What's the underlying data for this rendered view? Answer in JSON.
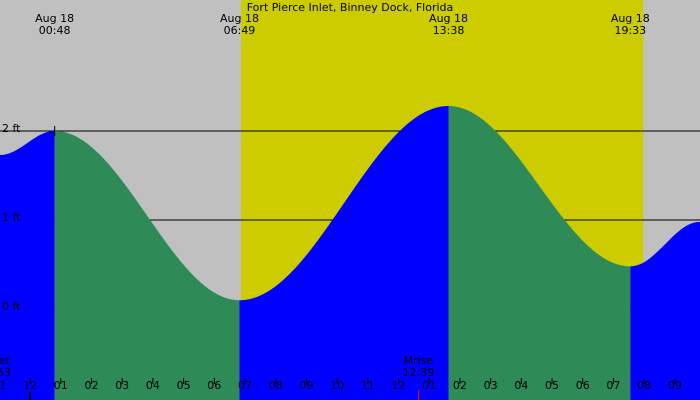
{
  "chart_data": {
    "type": "tide",
    "title": "Fort Pierce Inlet, Binney Dock, Florida",
    "xlim": [
      -0.98,
      21.82
    ],
    "ylim": [
      -1.02,
      3.47
    ],
    "xticks": [
      {
        "value": -1,
        "label": "11"
      },
      {
        "value": 0,
        "label": "12"
      },
      {
        "value": 1,
        "label": "01"
      },
      {
        "value": 2,
        "label": "02"
      },
      {
        "value": 3,
        "label": "03"
      },
      {
        "value": 4,
        "label": "04"
      },
      {
        "value": 5,
        "label": "05"
      },
      {
        "value": 6,
        "label": "06"
      },
      {
        "value": 7,
        "label": "07"
      },
      {
        "value": 8,
        "label": "08"
      },
      {
        "value": 9,
        "label": "09"
      },
      {
        "value": 10,
        "label": "10"
      },
      {
        "value": 11,
        "label": "11"
      },
      {
        "value": 12,
        "label": "12"
      },
      {
        "value": 13,
        "label": "01"
      },
      {
        "value": 14,
        "label": "02"
      },
      {
        "value": 15,
        "label": "03"
      },
      {
        "value": 16,
        "label": "04"
      },
      {
        "value": 17,
        "label": "05"
      },
      {
        "value": 18,
        "label": "06"
      },
      {
        "value": 19,
        "label": "07"
      },
      {
        "value": 20,
        "label": "08"
      },
      {
        "value": 21,
        "label": "09"
      }
    ],
    "yticks": [
      {
        "value": 0,
        "label": "0 ft"
      },
      {
        "value": 1,
        "label": "1 ft"
      },
      {
        "value": 2,
        "label": "2 ft"
      }
    ],
    "daylight": [
      6.87,
      19.97
    ],
    "series": [
      {
        "x": [
          -0.98,
          0.8,
          6.82,
          13.63,
          19.55,
          21.82
        ],
        "values": [
          1.73,
          2.0,
          0.1,
          2.28,
          0.48,
          0.98
        ]
      }
    ],
    "extremes": [
      {
        "x": 0.8,
        "date": "Aug 18",
        "time": "00:48"
      },
      {
        "x": 6.82,
        "date": "Aug 18",
        "time": "06:49"
      },
      {
        "x": 13.63,
        "date": "Aug 18",
        "time": "13:38"
      },
      {
        "x": 19.55,
        "date": "Aug 18",
        "time": "19:33"
      }
    ],
    "annotations": [
      {
        "x": -0.85,
        "label": "et",
        "time": "53"
      },
      {
        "x": 12.65,
        "label": "Mrise",
        "time": "12:39"
      }
    ],
    "colors": {
      "night": "#c0c0c0",
      "day": "#cccc00",
      "rising": "#0000ff",
      "falling": "#2e8b57",
      "grid": "#000000",
      "moon": "#ff0000"
    }
  }
}
